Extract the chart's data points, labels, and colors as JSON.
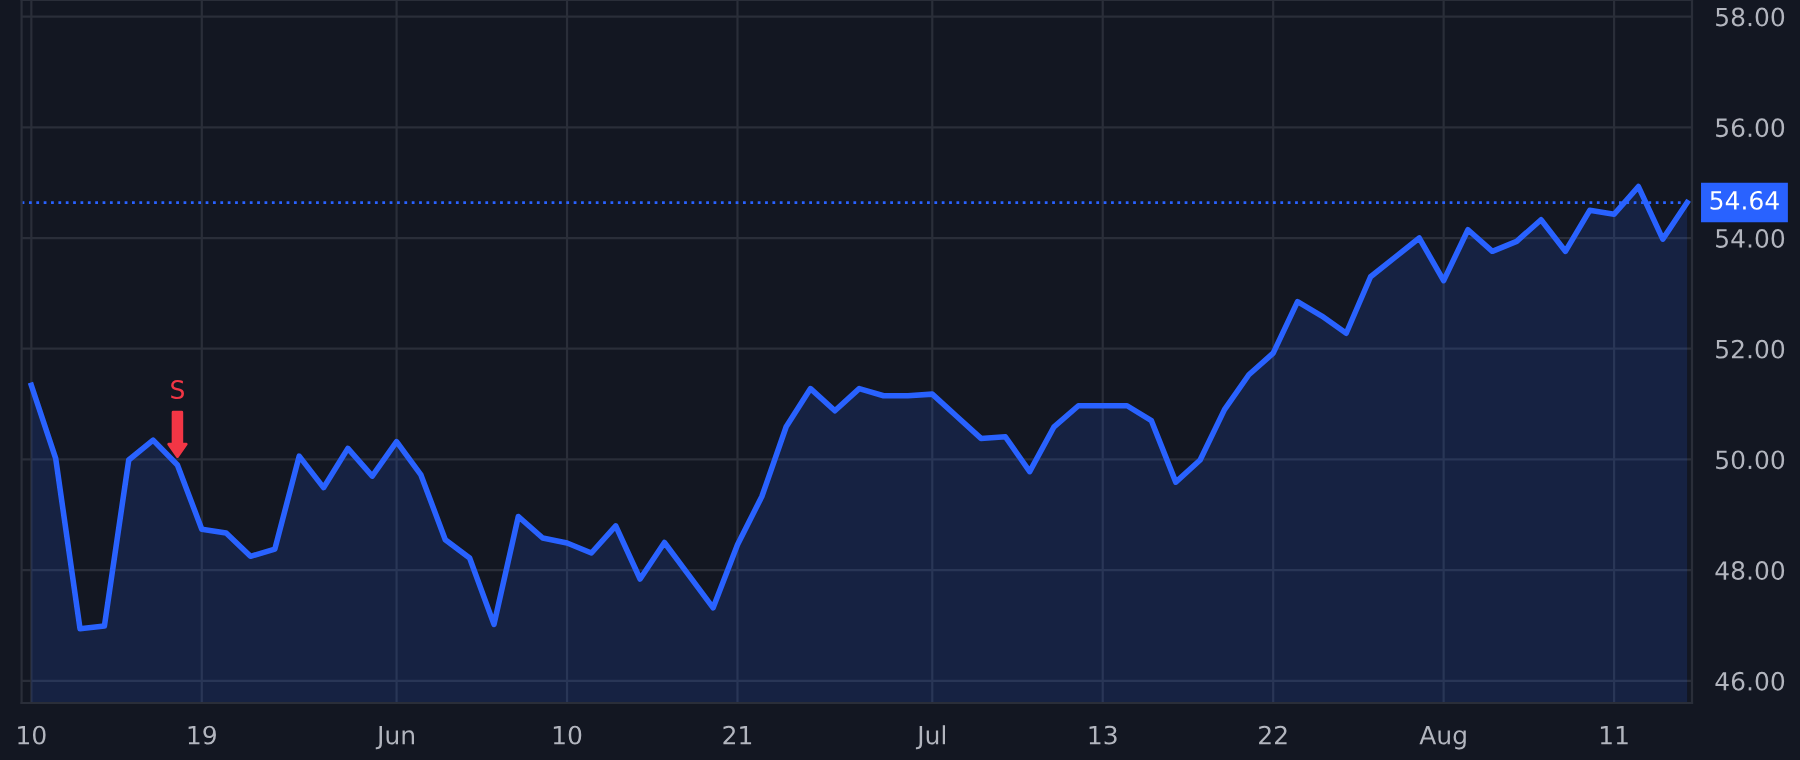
{
  "chart_data": {
    "type": "area",
    "categories": [
      "10",
      null,
      null,
      null,
      null,
      null,
      null,
      "19",
      null,
      null,
      null,
      null,
      null,
      null,
      null,
      "Jun",
      null,
      null,
      null,
      null,
      null,
      null,
      "10",
      null,
      null,
      null,
      null,
      null,
      null,
      "21",
      null,
      null,
      null,
      null,
      null,
      null,
      null,
      "Jul",
      null,
      null,
      null,
      null,
      null,
      null,
      "13",
      null,
      null,
      null,
      null,
      null,
      null,
      "22",
      null,
      null,
      null,
      null,
      null,
      null,
      "Aug",
      null,
      null,
      null,
      null,
      null,
      null,
      "11",
      null,
      null,
      null
    ],
    "series": [
      {
        "color": "#2962ff",
        "values": [
          51.34,
          50.02,
          46.94,
          46.99,
          49.99,
          50.35,
          49.9,
          48.74,
          48.67,
          48.25,
          48.38,
          50.06,
          49.49,
          50.2,
          49.7,
          50.32,
          49.72,
          48.55,
          48.22,
          47.02,
          48.97,
          48.58,
          48.49,
          48.31,
          48.8,
          47.84,
          48.5,
          47.91,
          47.32,
          48.46,
          49.33,
          50.59,
          51.28,
          50.88,
          51.28,
          51.15,
          51.15,
          51.18,
          50.78,
          50.38,
          50.41,
          49.78,
          50.59,
          50.97,
          50.97,
          50.97,
          50.7,
          49.59,
          49.99,
          50.9,
          51.53,
          51.92,
          52.85,
          52.59,
          52.28,
          53.3,
          53.65,
          54.0,
          53.23,
          54.15,
          53.76,
          53.94,
          54.33,
          53.76,
          54.5,
          54.43,
          54.93,
          53.98,
          54.64
        ]
      }
    ],
    "ylim": [
      45.6,
      58.3
    ],
    "yticks": [
      {
        "value": 46,
        "label": "46.00"
      },
      {
        "value": 48,
        "label": "48.00"
      },
      {
        "value": 50,
        "label": "50.00"
      },
      {
        "value": 52,
        "label": "52.00"
      },
      {
        "value": 54,
        "label": "54.00"
      },
      {
        "value": 56,
        "label": "56.00"
      },
      {
        "value": 58,
        "label": "58.00"
      }
    ],
    "ref_lines": [
      {
        "axis": "y",
        "value": 54.64,
        "label": "54.64",
        "color": "#2962ff",
        "line_style": "dotted"
      }
    ],
    "annotations": [
      {
        "text": "S",
        "y": 49.9
      }
    ],
    "grid": true,
    "line_style": "solid",
    "marker": "none"
  }
}
